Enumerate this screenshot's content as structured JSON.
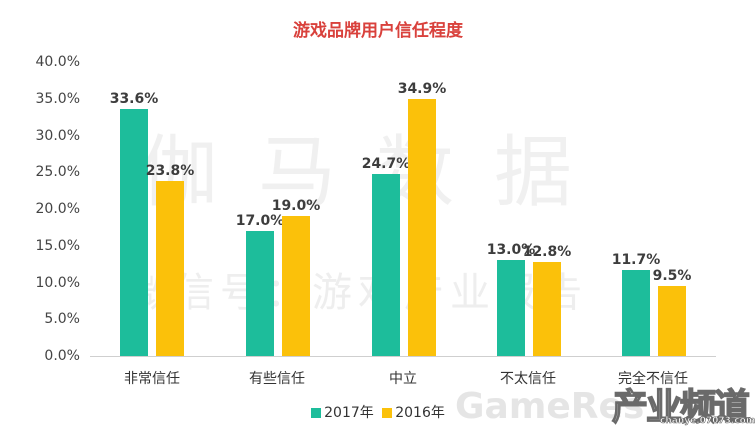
{
  "title": "游戏品牌用户信任程度",
  "yaxis": {
    "ticks": [
      "40.0%",
      "35.0%",
      "30.0%",
      "25.0%",
      "20.0%",
      "15.0%",
      "10.0%",
      "5.0%",
      "0.0%"
    ]
  },
  "legend": {
    "items": [
      {
        "label": "2017年",
        "color": "#1dbd9b"
      },
      {
        "label": "2016年",
        "color": "#fbc10a"
      }
    ]
  },
  "watermarks": {
    "main": "伽马数据",
    "sub": "微信号：游戏产业报告",
    "gameres": "GameRes",
    "chanye": "产业频道",
    "chanye_url": "chanye.07073.com"
  },
  "categories": [
    "非常信任",
    "有些信任",
    "中立",
    "不太信任",
    "完全不信任"
  ],
  "labels": {
    "s2017": [
      "33.6%",
      "17.0%",
      "24.7%",
      "13.0%",
      "11.7%"
    ],
    "s2016": [
      "23.8%",
      "19.0%",
      "34.9%",
      "12.8%",
      "9.5%"
    ]
  },
  "chart_data": {
    "type": "bar",
    "title": "游戏品牌用户信任程度",
    "categories": [
      "非常信任",
      "有些信任",
      "中立",
      "不太信任",
      "完全不信任"
    ],
    "series": [
      {
        "name": "2017年",
        "color": "#1dbd9b",
        "values": [
          33.6,
          17.0,
          24.7,
          13.0,
          11.7
        ]
      },
      {
        "name": "2016年",
        "color": "#fbc10a",
        "values": [
          23.8,
          19.0,
          34.9,
          12.8,
          9.5
        ]
      }
    ],
    "xlabel": "",
    "ylabel": "",
    "ylim": [
      0,
      40
    ],
    "yticks": [
      "0.0%",
      "5.0%",
      "10.0%",
      "15.0%",
      "20.0%",
      "25.0%",
      "30.0%",
      "35.0%",
      "40.0%"
    ],
    "grid": false,
    "legend_position": "bottom",
    "data_labels": true
  }
}
